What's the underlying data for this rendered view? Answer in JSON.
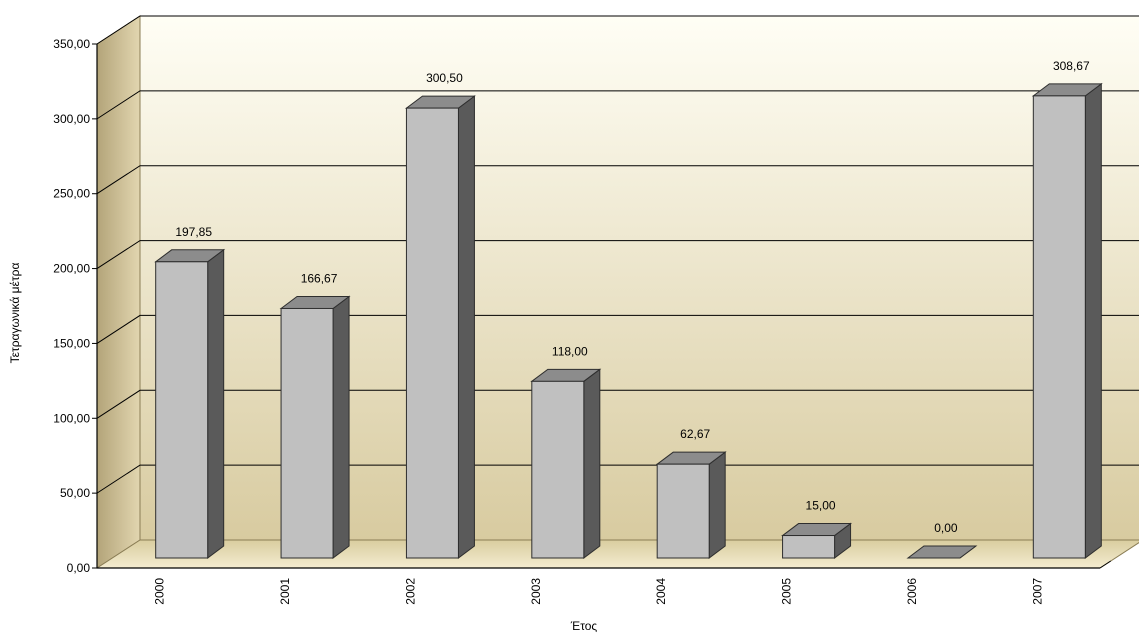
{
  "chart_data": {
    "type": "bar",
    "title": "",
    "xlabel": "Έτος",
    "ylabel": "Τετραγωνικά μέτρα",
    "categories": [
      "2000",
      "2001",
      "2002",
      "2003",
      "2004",
      "2005",
      "2006",
      "2007"
    ],
    "values": [
      197.85,
      166.67,
      300.5,
      118.0,
      62.67,
      15.0,
      0.0,
      308.67
    ],
    "value_labels": [
      "197,85",
      "166,67",
      "300,50",
      "118,00",
      "62,67",
      "15,00",
      "0,00",
      "308,67"
    ],
    "ylim": [
      0,
      350
    ],
    "yticks": [
      {
        "value": 0,
        "label": "0,00"
      },
      {
        "value": 50,
        "label": "50,00"
      },
      {
        "value": 100,
        "label": "100,00"
      },
      {
        "value": 150,
        "label": "150,00"
      },
      {
        "value": 200,
        "label": "200,00"
      },
      {
        "value": 250,
        "label": "250,00"
      },
      {
        "value": 300,
        "label": "300,00"
      },
      {
        "value": 350,
        "label": "350,00"
      }
    ],
    "grid": true,
    "legend": "none",
    "three_d": true,
    "colors": {
      "bar_front": "#c0c0c0",
      "bar_side": "#5a5a5a",
      "bar_top": "#8c8c8c",
      "back_wall_top": "#fffef5",
      "back_wall_bottom": "#d8cba0",
      "side_wall": "#c5b68a",
      "floor": "#eee3bc"
    }
  }
}
